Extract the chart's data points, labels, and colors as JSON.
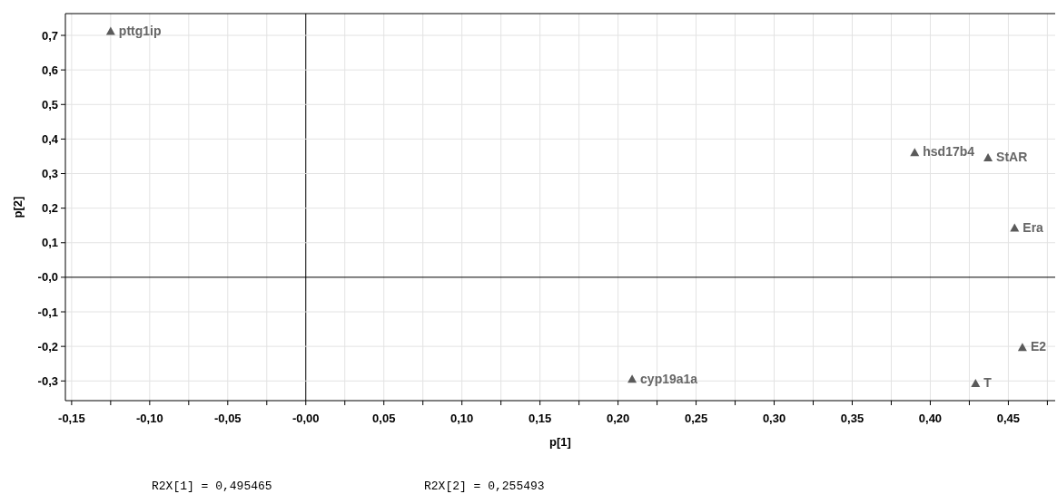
{
  "chart_data": {
    "type": "scatter",
    "xlabel": "p[1]",
    "ylabel": "p[2]",
    "series": [
      {
        "color": "#5a5a5a",
        "x": [
          -0.125,
          0.39,
          0.437,
          0.454,
          0.459,
          0.429,
          0.209
        ],
        "values": [
          0.712,
          0.361,
          0.346,
          0.143,
          -0.203,
          -0.307,
          -0.295
        ]
      }
    ],
    "marker": "triangle",
    "grid": true,
    "xlim": [
      -0.154,
      0.48
    ],
    "ylim": [
      -0.357,
      0.763
    ],
    "xticks": [
      {
        "value": -0.15,
        "label": "-0,15"
      },
      {
        "value": -0.125,
        "label": null
      },
      {
        "value": -0.1,
        "label": "-0,10"
      },
      {
        "value": -0.075,
        "label": null
      },
      {
        "value": -0.05,
        "label": "-0,05"
      },
      {
        "value": -0.025,
        "label": null
      },
      {
        "value": 0,
        "label": "-0,00"
      },
      {
        "value": 0.025,
        "label": null
      },
      {
        "value": 0.05,
        "label": "0,05"
      },
      {
        "value": 0.075,
        "label": null
      },
      {
        "value": 0.1,
        "label": "0,10"
      },
      {
        "value": 0.125,
        "label": null
      },
      {
        "value": 0.15,
        "label": "0,15"
      },
      {
        "value": 0.175,
        "label": null
      },
      {
        "value": 0.2,
        "label": "0,20"
      },
      {
        "value": 0.225,
        "label": null
      },
      {
        "value": 0.25,
        "label": "0,25"
      },
      {
        "value": 0.275,
        "label": null
      },
      {
        "value": 0.3,
        "label": "0,30"
      },
      {
        "value": 0.325,
        "label": null
      },
      {
        "value": 0.35,
        "label": "0,35"
      },
      {
        "value": 0.375,
        "label": null
      },
      {
        "value": 0.4,
        "label": "0,40"
      },
      {
        "value": 0.425,
        "label": null
      },
      {
        "value": 0.45,
        "label": "0,45"
      },
      {
        "value": 0.475,
        "label": null
      }
    ],
    "yticks": [
      {
        "value": -0.3,
        "label": "-0,3"
      },
      {
        "value": -0.2,
        "label": "-0,2"
      },
      {
        "value": -0.1,
        "label": "-0,1"
      },
      {
        "value": 0,
        "label": "-0,0"
      },
      {
        "value": 0.1,
        "label": "0,1"
      },
      {
        "value": 0.2,
        "label": "0,2"
      },
      {
        "value": 0.3,
        "label": "0,3"
      },
      {
        "value": 0.4,
        "label": "0,4"
      },
      {
        "value": 0.5,
        "label": "0,5"
      },
      {
        "value": 0.6,
        "label": "0,6"
      },
      {
        "value": 0.7,
        "label": "0,7"
      }
    ],
    "annotations": [
      {
        "text": "pttg1ip",
        "x": -0.125,
        "y": 0.712
      },
      {
        "text": "hsd17b4",
        "x": 0.39,
        "y": 0.361
      },
      {
        "text": "StAR",
        "x": 0.437,
        "y": 0.346
      },
      {
        "text": "Era",
        "x": 0.454,
        "y": 0.143
      },
      {
        "text": "E2",
        "x": 0.459,
        "y": -0.203
      },
      {
        "text": "T",
        "x": 0.429,
        "y": -0.307
      },
      {
        "text": "cyp19a1a",
        "x": 0.209,
        "y": -0.295
      },
      "R2X[1] = 0,495465",
      "R2X[2] = 0,255493"
    ]
  }
}
